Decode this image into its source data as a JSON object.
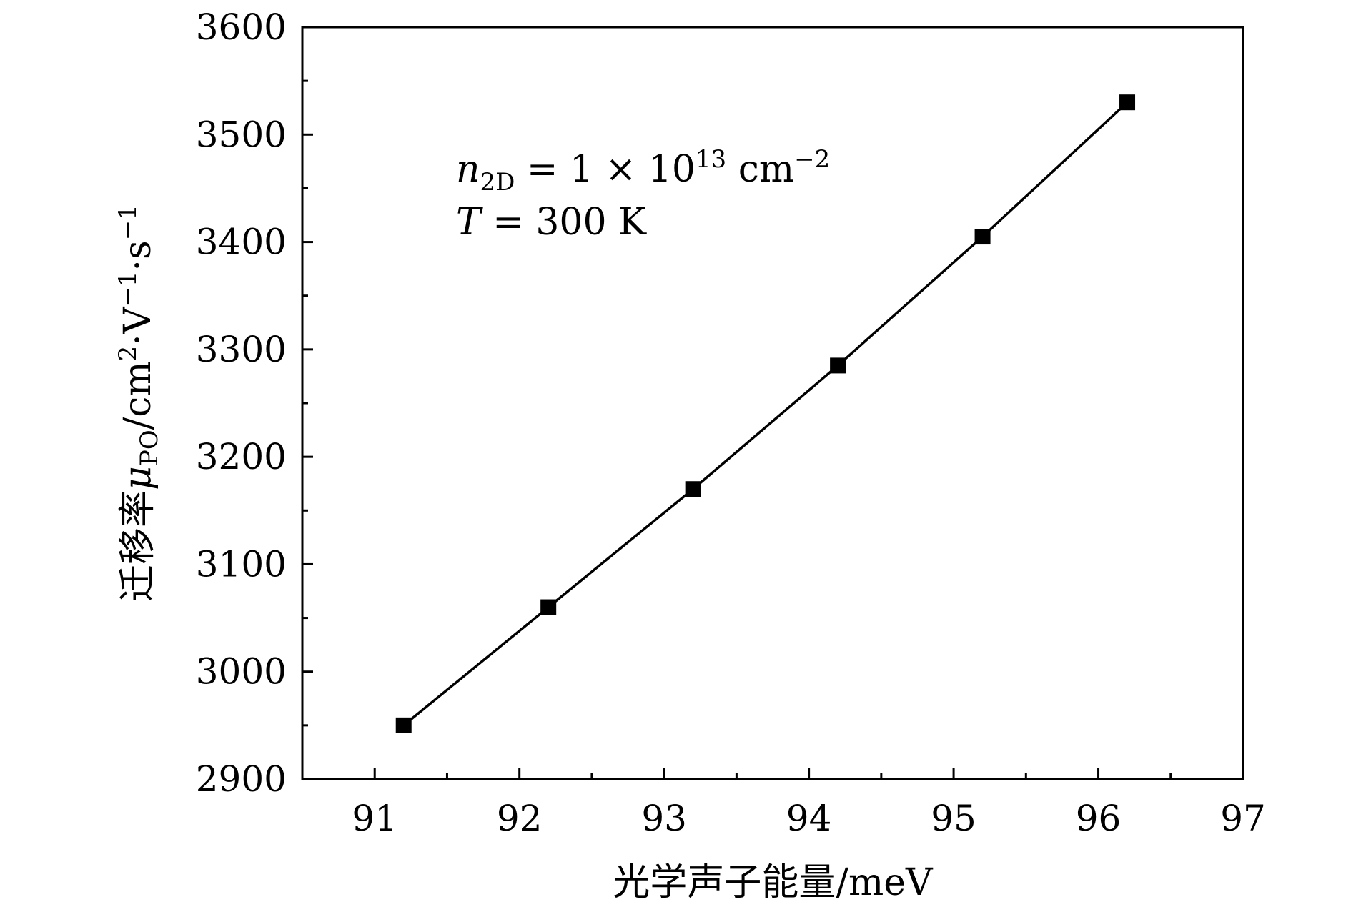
{
  "chart_data": {
    "type": "line",
    "title": "",
    "xlabel": "光学声子能量/meV",
    "ylabel": {
      "prefix": "迁移率",
      "symbol": "μ",
      "symbol_sub": "PO",
      "units_lead": "/cm",
      "sup1": "2",
      "units_mid": "·V",
      "sup2": "−1",
      "units_tail": "·s",
      "sup3": "−1"
    },
    "xlim": [
      90.5,
      97
    ],
    "ylim": [
      2900,
      3600
    ],
    "x_ticks": [
      91,
      92,
      93,
      94,
      95,
      96,
      97
    ],
    "y_ticks": [
      2900,
      3000,
      3100,
      3200,
      3300,
      3400,
      3500,
      3600
    ],
    "grid": false,
    "marker": "square",
    "series": [
      {
        "x": [
          91.2,
          92.2,
          93.2,
          94.2,
          95.2,
          96.2
        ],
        "y": [
          2950,
          3060,
          3170,
          3285,
          3405,
          3530
        ]
      }
    ],
    "annotations": {
      "line1": {
        "base": "n",
        "sub": "2D",
        "eq": " = 1 × 10",
        "sup": "13",
        "unit": " cm",
        "unit_sup": "−2"
      },
      "line2": {
        "base": "T",
        "rest": " = 300  K"
      }
    },
    "colors": {
      "line": "#000000",
      "marker": "#000000",
      "axis": "#000000"
    }
  }
}
